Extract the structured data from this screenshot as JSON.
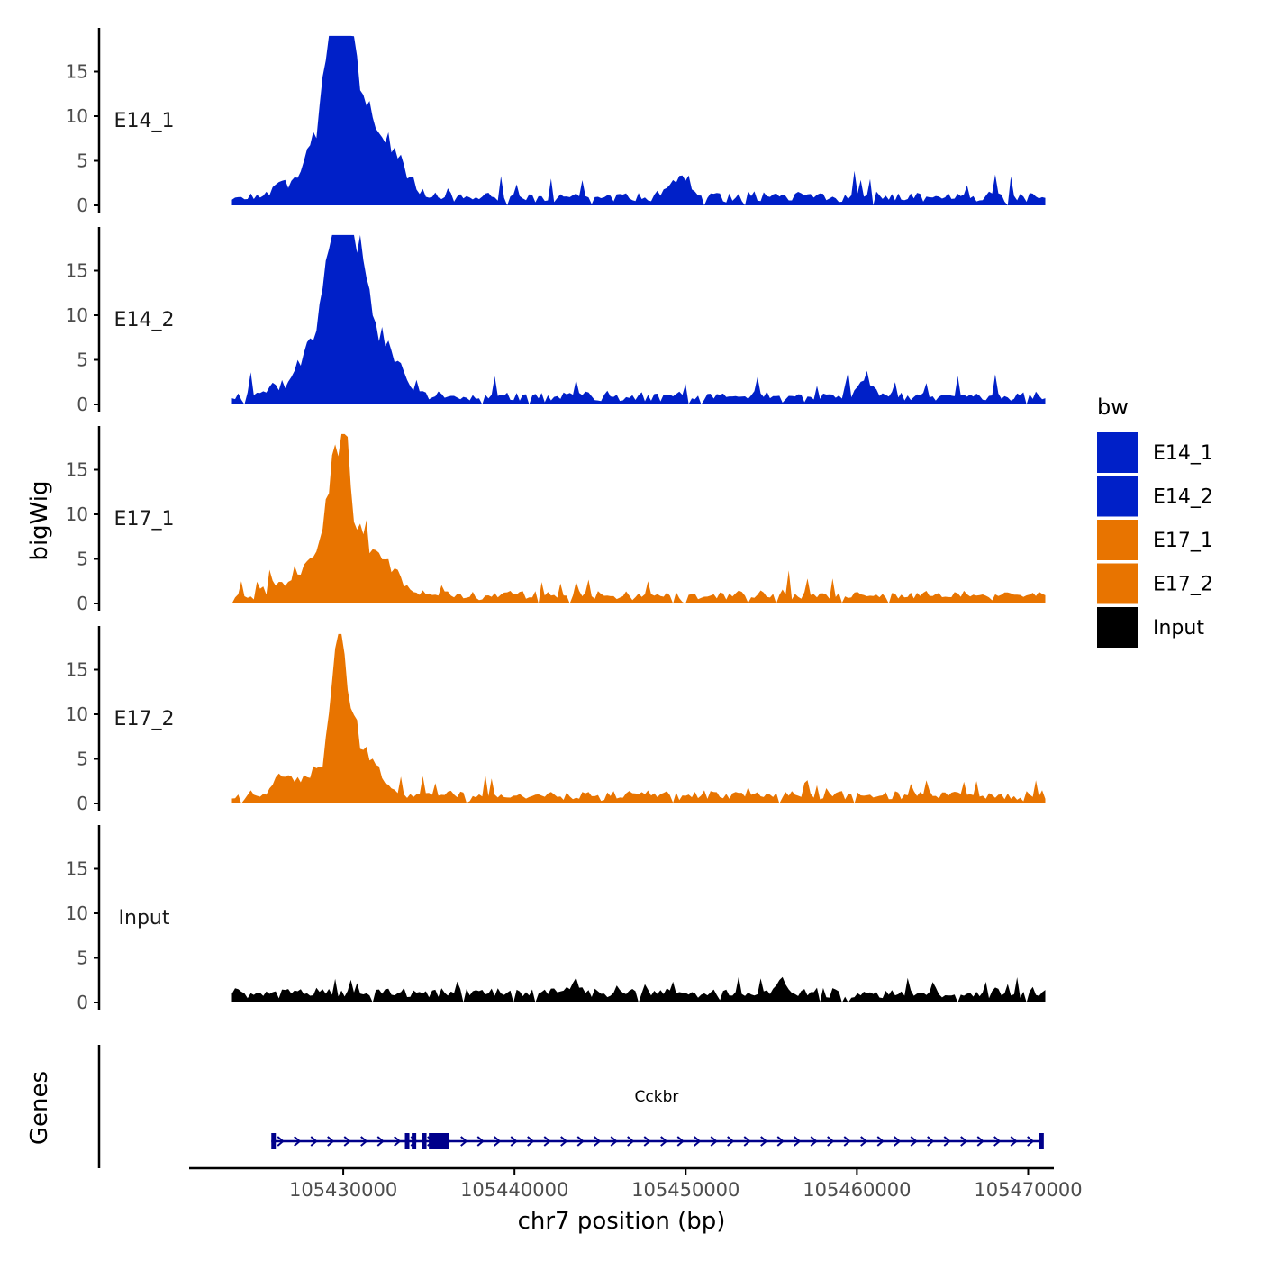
{
  "chart_data": {
    "type": "area",
    "title": "",
    "xlabel": "chr7 position (bp)",
    "ylabel": "bigWig",
    "genes_label": "Genes",
    "xlim": [
      105421000,
      105471500
    ],
    "ylim": [
      0,
      20
    ],
    "x_ticks": [
      105430000,
      105440000,
      105450000,
      105460000,
      105470000
    ],
    "x_tick_labels": [
      "105430000",
      "105440000",
      "105450000",
      "105460000",
      "105470000"
    ],
    "y_ticks": [
      0,
      5,
      10,
      15
    ],
    "y_tick_labels": [
      "0",
      "5",
      "10",
      "15"
    ],
    "data_range": [
      105423500,
      105471000
    ],
    "colors": {
      "E14": "#0020C8",
      "E17": "#E87400",
      "Input": "#000000",
      "gene": "#00008B"
    },
    "legend": {
      "title": "bw",
      "position": "right",
      "entries": [
        {
          "label": "E14_1",
          "color": "#0020C8"
        },
        {
          "label": "E14_2",
          "color": "#0020C8"
        },
        {
          "label": "E17_1",
          "color": "#E87400"
        },
        {
          "label": "E17_2",
          "color": "#E87400"
        },
        {
          "label": "Input",
          "color": "#000000"
        }
      ]
    },
    "tracks": [
      {
        "name": "E14_1",
        "color": "#0020C8",
        "seed": 11,
        "baseline": 0.7,
        "noise": 1.2,
        "spike_prob": 0.06,
        "spike_max": 2.0,
        "peaks": [
          {
            "x": 105426400,
            "h": 1.6,
            "w": 500
          },
          {
            "x": 105427700,
            "h": 2.8,
            "w": 500
          },
          {
            "x": 105428600,
            "h": 6.0,
            "w": 500
          },
          {
            "x": 105429200,
            "h": 17.5,
            "w": 350
          },
          {
            "x": 105429800,
            "h": 13.0,
            "w": 300
          },
          {
            "x": 105430100,
            "h": 18.2,
            "w": 350
          },
          {
            "x": 105430700,
            "h": 10.5,
            "w": 450
          },
          {
            "x": 105431500,
            "h": 6.5,
            "w": 550
          },
          {
            "x": 105432500,
            "h": 5.5,
            "w": 550
          },
          {
            "x": 105433600,
            "h": 3.0,
            "w": 500
          },
          {
            "x": 105449300,
            "h": 1.6,
            "w": 500
          },
          {
            "x": 105450000,
            "h": 1.8,
            "w": 300
          }
        ]
      },
      {
        "name": "E14_2",
        "color": "#0020C8",
        "seed": 23,
        "baseline": 0.7,
        "noise": 1.2,
        "spike_prob": 0.06,
        "spike_max": 2.0,
        "peaks": [
          {
            "x": 105426000,
            "h": 1.5,
            "w": 500
          },
          {
            "x": 105427400,
            "h": 3.0,
            "w": 500
          },
          {
            "x": 105428200,
            "h": 5.5,
            "w": 400
          },
          {
            "x": 105429100,
            "h": 16.5,
            "w": 400
          },
          {
            "x": 105429700,
            "h": 13.5,
            "w": 300
          },
          {
            "x": 105430000,
            "h": 18.5,
            "w": 300
          },
          {
            "x": 105430600,
            "h": 13.0,
            "w": 450
          },
          {
            "x": 105431300,
            "h": 9.0,
            "w": 500
          },
          {
            "x": 105432300,
            "h": 5.0,
            "w": 550
          },
          {
            "x": 105433200,
            "h": 3.0,
            "w": 500
          },
          {
            "x": 105460400,
            "h": 1.8,
            "w": 500
          }
        ]
      },
      {
        "name": "E17_1",
        "color": "#E87400",
        "seed": 37,
        "baseline": 0.8,
        "noise": 1.0,
        "spike_prob": 0.05,
        "spike_max": 1.8,
        "peaks": [
          {
            "x": 105426200,
            "h": 1.6,
            "w": 550
          },
          {
            "x": 105427800,
            "h": 2.8,
            "w": 550
          },
          {
            "x": 105428700,
            "h": 4.0,
            "w": 500
          },
          {
            "x": 105429300,
            "h": 11.0,
            "w": 350
          },
          {
            "x": 105429900,
            "h": 9.0,
            "w": 300
          },
          {
            "x": 105430200,
            "h": 11.5,
            "w": 350
          },
          {
            "x": 105431000,
            "h": 6.5,
            "w": 500
          },
          {
            "x": 105432100,
            "h": 3.5,
            "w": 550
          },
          {
            "x": 105433100,
            "h": 2.0,
            "w": 500
          }
        ]
      },
      {
        "name": "E17_2",
        "color": "#E87400",
        "seed": 53,
        "baseline": 0.8,
        "noise": 1.0,
        "spike_prob": 0.05,
        "spike_max": 1.8,
        "peaks": [
          {
            "x": 105426600,
            "h": 2.5,
            "w": 600
          },
          {
            "x": 105428200,
            "h": 3.0,
            "w": 500
          },
          {
            "x": 105429400,
            "h": 12.0,
            "w": 350
          },
          {
            "x": 105429800,
            "h": 12.5,
            "w": 250
          },
          {
            "x": 105430300,
            "h": 8.5,
            "w": 350
          },
          {
            "x": 105431000,
            "h": 5.5,
            "w": 450
          },
          {
            "x": 105432000,
            "h": 3.0,
            "w": 500
          }
        ]
      },
      {
        "name": "Input",
        "color": "#000000",
        "seed": 71,
        "baseline": 1.0,
        "noise": 0.8,
        "spike_prob": 0.05,
        "spike_max": 1.6,
        "peaks": [
          {
            "x": 105443500,
            "h": 1.3,
            "w": 250
          },
          {
            "x": 105455500,
            "h": 1.5,
            "w": 250
          }
        ]
      }
    ],
    "gene": {
      "name": "Cckbr",
      "strand": "+",
      "start": 105425800,
      "end": 105470800,
      "exons": [
        {
          "start": 105425800,
          "end": 105426000
        },
        {
          "start": 105433600,
          "end": 105433800
        },
        {
          "start": 105434000,
          "end": 105434150
        },
        {
          "start": 105434600,
          "end": 105434750
        },
        {
          "start": 105435000,
          "end": 105436200
        },
        {
          "start": 105470650,
          "end": 105470800
        }
      ]
    }
  }
}
